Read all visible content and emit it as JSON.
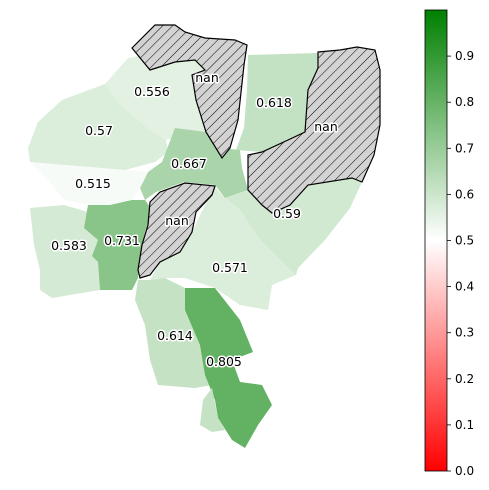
{
  "chart_data": {
    "type": "choropleth",
    "colormap": {
      "min_color": "#ff0000",
      "mid_color": "#ffffff",
      "max_color": "#008000"
    },
    "vmin": 0.0,
    "vmax": 1.0,
    "colorbar_ticks": [
      "0.0",
      "0.1",
      "0.2",
      "0.3",
      "0.4",
      "0.5",
      "0.6",
      "0.7",
      "0.8",
      "0.9"
    ],
    "missing_fill": "#d3d3d3",
    "regions": [
      {
        "id": "r-northwest",
        "value": 0.556,
        "label": "0.556"
      },
      {
        "id": "r-west",
        "value": 0.57,
        "label": "0.57"
      },
      {
        "id": "r-north-center",
        "value": 0.618,
        "label": "0.618"
      },
      {
        "id": "r-center",
        "value": 0.667,
        "label": "0.667"
      },
      {
        "id": "r-westmid",
        "value": 0.515,
        "label": "0.515"
      },
      {
        "id": "r-east",
        "value": 0.59,
        "label": "0.59"
      },
      {
        "id": "r-southwest",
        "value": 0.583,
        "label": "0.583"
      },
      {
        "id": "r-midwest",
        "value": 0.731,
        "label": "0.731"
      },
      {
        "id": "r-southcenter",
        "value": 0.571,
        "label": "0.571"
      },
      {
        "id": "r-south",
        "value": 0.614,
        "label": "0.614"
      },
      {
        "id": "r-southeast",
        "value": 0.805,
        "label": "0.805"
      },
      {
        "id": "r-nan-north",
        "value": null,
        "label": "nan"
      },
      {
        "id": "r-nan-east",
        "value": null,
        "label": "nan"
      },
      {
        "id": "r-nan-center",
        "value": null,
        "label": "nan"
      }
    ]
  }
}
